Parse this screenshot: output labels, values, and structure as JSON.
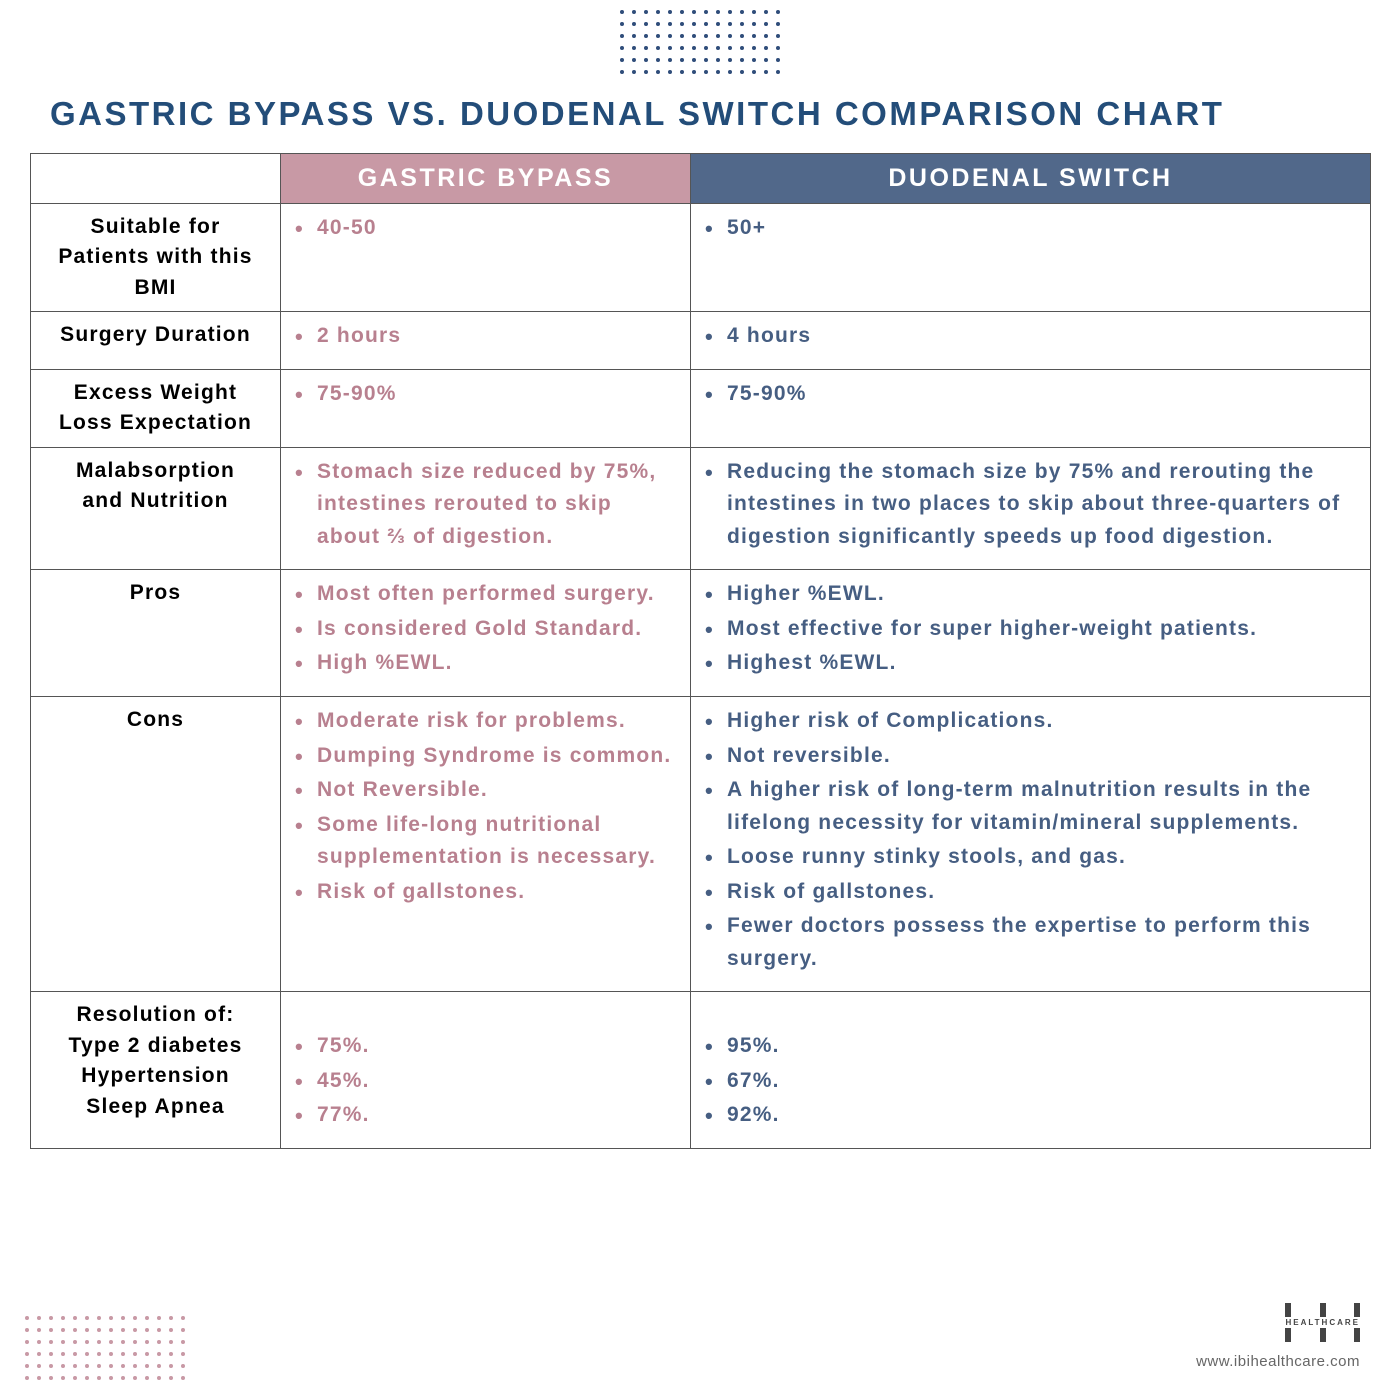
{
  "title": "GASTRIC BYPASS VS. DUODENAL SWITCH COMPARISON CHART",
  "colors": {
    "title": "#234d79",
    "header_pink": "#c899a5",
    "header_blue": "#51688a",
    "text_pink": "#b8808f",
    "text_blue": "#465e82",
    "dot_top": "#2f4d7a",
    "dot_bottom": "#c899a5"
  },
  "headers": {
    "col1": "GASTRIC BYPASS",
    "col2": "DUODENAL SWITCH"
  },
  "rows": [
    {
      "label_lines": [
        "Suitable for",
        "Patients with this",
        "BMI"
      ],
      "gastric": [
        "40-50"
      ],
      "duodenal": [
        "50+"
      ]
    },
    {
      "label_lines": [
        "Surgery Duration"
      ],
      "gastric": [
        "2 hours"
      ],
      "duodenal": [
        "4 hours"
      ]
    },
    {
      "label_lines": [
        "Excess Weight",
        "Loss Expectation"
      ],
      "gastric": [
        "75-90%"
      ],
      "duodenal": [
        "75-90%"
      ]
    },
    {
      "label_lines": [
        "Malabsorption",
        "and Nutrition"
      ],
      "gastric": [
        "Stomach size reduced by 75%, intestines rerouted to skip about ⅔ of digestion."
      ],
      "duodenal": [
        "Reducing the stomach size by 75% and rerouting the intestines in two places to skip about three-quarters of digestion significantly speeds up food digestion."
      ]
    },
    {
      "label_lines": [
        "Pros"
      ],
      "gastric": [
        "Most often performed surgery.",
        "Is considered Gold Standard.",
        "High %EWL."
      ],
      "duodenal": [
        "Higher %EWL.",
        "Most effective for super higher-weight patients.",
        "Highest %EWL."
      ]
    },
    {
      "label_lines": [
        "Cons"
      ],
      "gastric": [
        "Moderate risk for problems.",
        "Dumping Syndrome is common.",
        "Not Reversible.",
        "Some life-long nutritional supplementation is necessary.",
        "Risk of gallstones."
      ],
      "duodenal": [
        "Higher risk of Complications.",
        "Not reversible.",
        "A higher risk of long-term malnutrition results in the lifelong necessity for vitamin/mineral supplements.",
        "Loose runny stinky stools, and gas.",
        "Risk of gallstones.",
        "Fewer doctors possess the expertise to perform this surgery."
      ]
    },
    {
      "label_lines": [
        "Resolution of:",
        "Type 2 diabetes",
        "Hypertension",
        "Sleep Apnea"
      ],
      "gastric": [
        "75%.",
        "45%.",
        "77%."
      ],
      "duodenal": [
        "95%.",
        "67%.",
        "92%."
      ],
      "leading_blank": true
    }
  ],
  "footer": {
    "logo_top": "I R I",
    "logo_mid": "HEALTHCARE",
    "url": "www.ibihealthcare.com"
  }
}
